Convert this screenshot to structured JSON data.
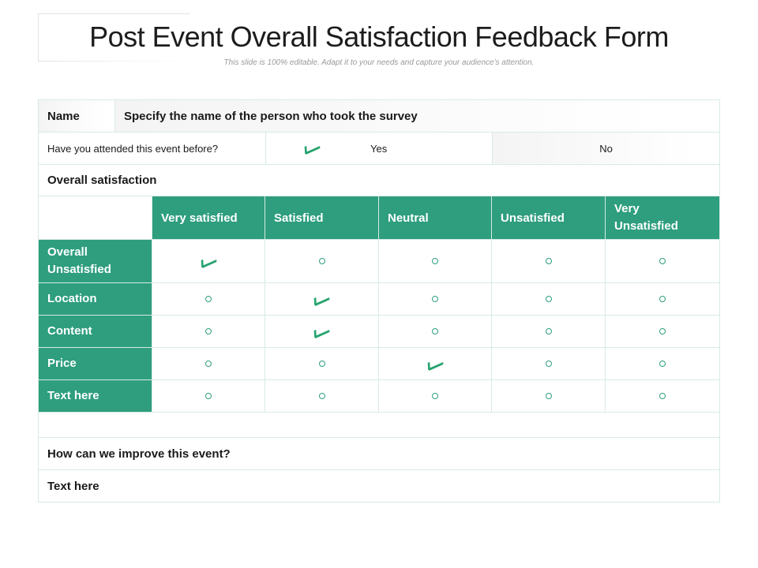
{
  "title": "Post Event Overall Satisfaction Feedback Form",
  "subtitle": "This slide is 100% editable. Adapt it to your needs and capture your audience's attention.",
  "name_row": {
    "label": "Name",
    "value": "Specify the name of the person who took the survey"
  },
  "attended_row": {
    "question": "Have you attended this event before?",
    "yes": "Yes",
    "no": "No",
    "selected": "Yes"
  },
  "section_heading": "Overall satisfaction",
  "columns": [
    "Very satisfied",
    "Satisfied",
    "Neutral",
    "Unsatisfied",
    "Very Unsatisfied"
  ],
  "rows": [
    {
      "label": "Overall Unsatisfied",
      "selected": 0
    },
    {
      "label": "Location",
      "selected": 1
    },
    {
      "label": "Content",
      "selected": 1
    },
    {
      "label": "Price",
      "selected": 2
    },
    {
      "label": "Text here",
      "selected": -1
    }
  ],
  "improve_question": "How can we improve this event?",
  "improve_answer": "Text here",
  "colors": {
    "accent": "#2e9e7e",
    "check": "#27a36f",
    "border": "#d7ebe3"
  }
}
